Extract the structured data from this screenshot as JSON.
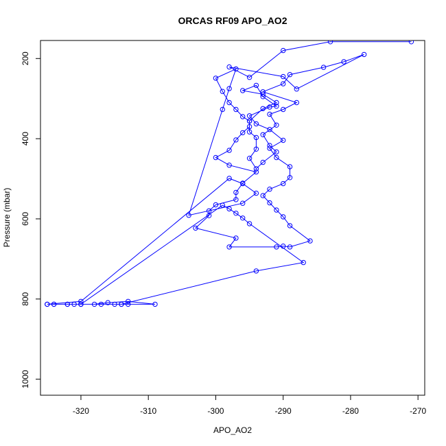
{
  "chart_data": {
    "type": "line",
    "title": "ORCAS RF09 APO_AO2",
    "xlabel": "APO_AO2",
    "ylabel": "Pressure (mbar)",
    "xlim": [
      -326,
      -269
    ],
    "ylim": [
      1040,
      155
    ],
    "y_reversed": true,
    "grid": false,
    "xticks": [
      "-320",
      "-310",
      "-300",
      "-290",
      "-280",
      "-270"
    ],
    "yticks": [
      "200",
      "400",
      "600",
      "800",
      "1000"
    ],
    "colors": {
      "series": "#0000ff"
    },
    "series": [
      {
        "marker": "open-circle",
        "x": [
          -271,
          -283,
          -290,
          -295,
          -298,
          -290,
          -288,
          -278,
          -281,
          -284,
          -289,
          -290,
          -293,
          -288,
          -290,
          -292,
          -291,
          -293,
          -292,
          -291,
          -293,
          -294,
          -295,
          -294,
          -294,
          -295,
          -295,
          -293,
          -291,
          -293,
          -296,
          -294,
          -293,
          -291,
          -292,
          -295,
          -294,
          -292,
          -290,
          -292,
          -291,
          -289,
          -289,
          -290,
          -292,
          -293,
          -292,
          -291,
          -290,
          -289,
          -286,
          -289,
          -290,
          -291,
          -298,
          -297,
          -303,
          -301,
          -301,
          -300,
          -297,
          -297,
          -296,
          -294,
          -298,
          -300,
          -298,
          -297,
          -296,
          -295,
          -295,
          -296,
          -297,
          -298,
          -299,
          -300,
          -297,
          -298,
          -299,
          -304,
          -296,
          -294,
          -296,
          -298,
          -320,
          -325,
          -324,
          -322,
          -321,
          -318,
          -316,
          -313,
          -309,
          -313,
          -315,
          -317,
          -320,
          -314,
          -314,
          -294,
          -287,
          -295,
          -296,
          -297,
          -298,
          -299,
          -320,
          -320,
          -322,
          -324,
          -325
        ],
        "y": [
          158,
          158,
          180,
          247,
          221,
          245,
          276,
          190,
          208,
          222,
          240,
          263,
          283,
          310,
          327,
          339,
          366,
          390,
          417,
          433,
          459,
          475,
          449,
          426,
          397,
          383,
          356,
          325,
          310,
          289,
          280,
          267,
          295,
          319,
          321,
          343,
          363,
          377,
          404,
          424,
          447,
          470,
          497,
          512,
          526,
          542,
          560,
          578,
          595,
          617,
          655,
          670,
          668,
          670,
          670,
          648,
          623,
          592,
          580,
          565,
          552,
          534,
          511,
          483,
          466,
          447,
          429,
          403,
          385,
          370,
          356,
          345,
          327,
          310,
          282,
          249,
          226,
          275,
          327,
          591,
          561,
          536,
          512,
          499,
          806,
          813,
          813,
          813,
          813,
          813,
          809,
          806,
          813,
          813,
          813,
          813,
          813,
          813,
          813,
          730,
          709,
          612,
          598,
          586,
          575,
          566,
          813,
          813,
          813,
          813,
          813
        ]
      }
    ]
  }
}
